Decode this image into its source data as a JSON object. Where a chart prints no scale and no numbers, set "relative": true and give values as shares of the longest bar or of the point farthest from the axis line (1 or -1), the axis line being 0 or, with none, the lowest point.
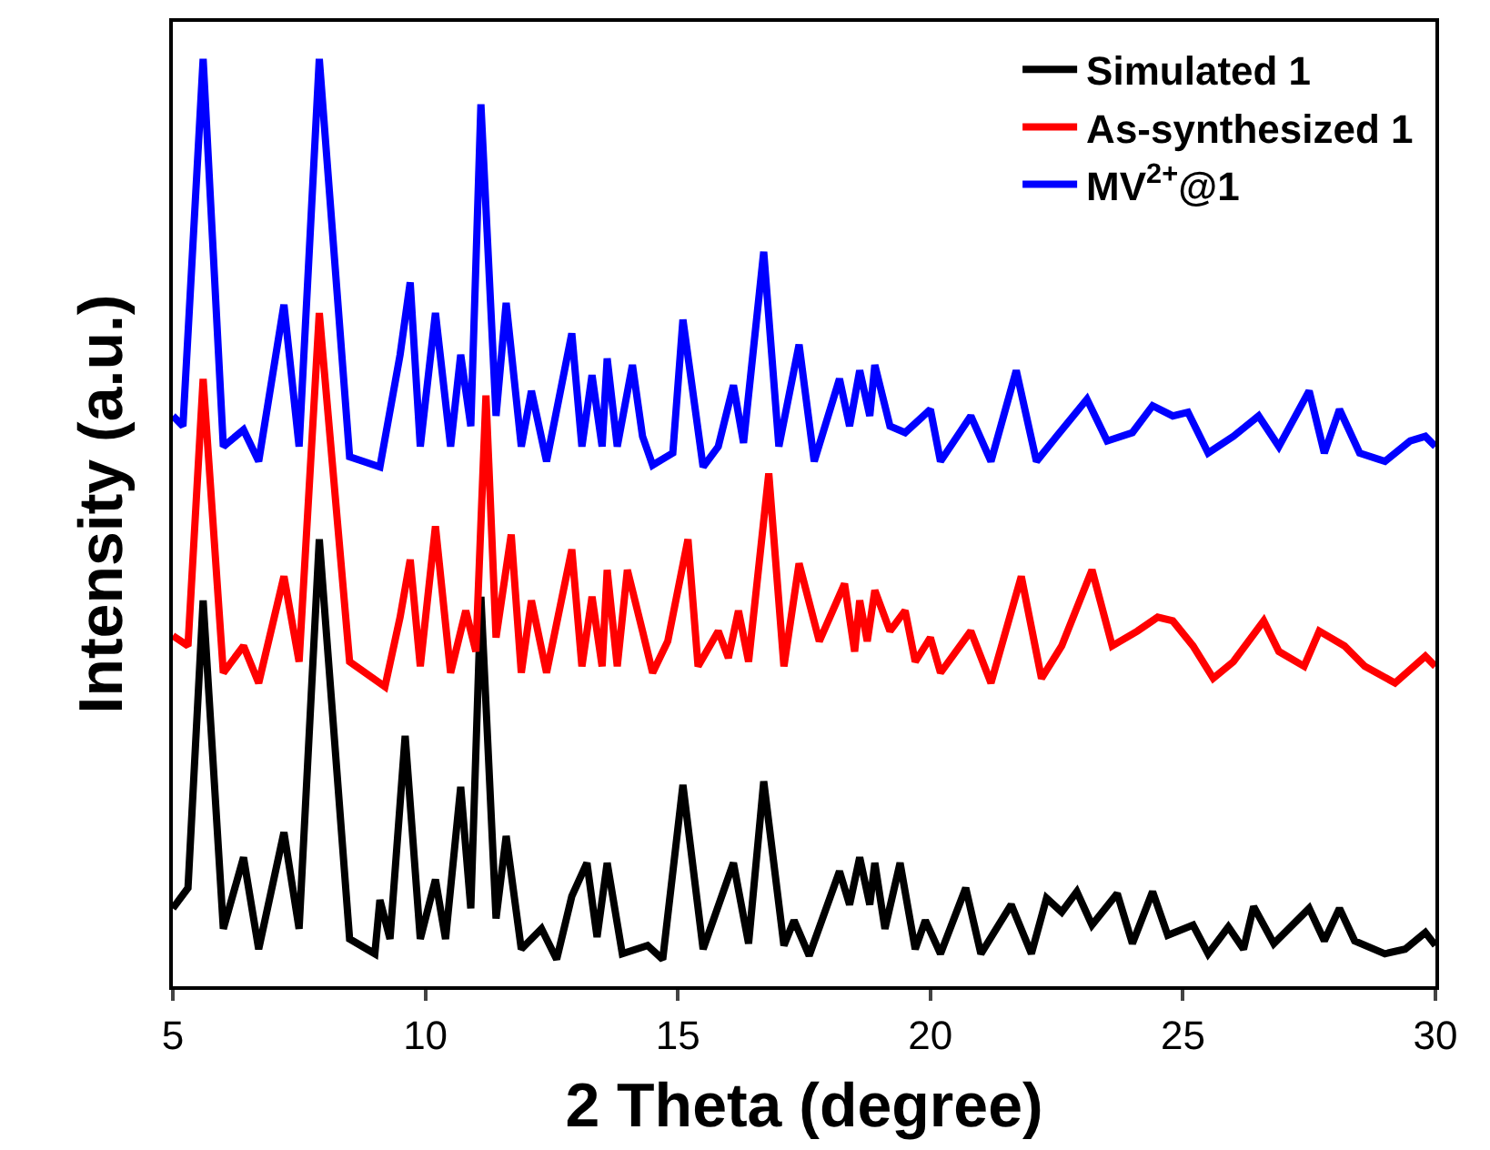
{
  "chart_data": {
    "type": "line",
    "relative": true,
    "xlabel": "2 Theta (degree)",
    "ylabel": "Intensity (a.u.)",
    "xlim": [
      5,
      30
    ],
    "xticks": [
      5,
      10,
      15,
      20,
      25,
      30
    ],
    "legend": "top right",
    "marker": "none",
    "line_style": "solid",
    "tick_labels": "x",
    "series": [
      {
        "name": "Simulated 1",
        "color": "#000000",
        "x": [
          5.0,
          5.3,
          5.6,
          6.0,
          6.4,
          6.7,
          7.2,
          7.5,
          7.9,
          8.5,
          9.0,
          9.1,
          9.3,
          9.6,
          9.9,
          10.2,
          10.4,
          10.7,
          10.9,
          11.1,
          11.4,
          11.6,
          11.9,
          12.3,
          12.6,
          12.9,
          13.2,
          13.4,
          13.6,
          13.9,
          14.4,
          14.7,
          15.1,
          15.5,
          16.1,
          16.4,
          16.7,
          17.1,
          17.3,
          17.6,
          18.2,
          18.4,
          18.6,
          18.8,
          18.9,
          19.1,
          19.4,
          19.7,
          19.9,
          20.2,
          20.7,
          21.0,
          21.6,
          22.0,
          22.3,
          22.6,
          22.9,
          23.2,
          23.7,
          24.0,
          24.4,
          24.7,
          25.2,
          25.5,
          25.9,
          26.2,
          26.4,
          26.8,
          27.5,
          27.8,
          28.1,
          28.4,
          29.0,
          29.4,
          29.8,
          30.0
        ],
        "values": [
          0.084,
          0.106,
          0.416,
          0.062,
          0.139,
          0.04,
          0.166,
          0.062,
          0.482,
          0.051,
          0.035,
          0.093,
          0.051,
          0.27,
          0.051,
          0.115,
          0.051,
          0.215,
          0.084,
          0.42,
          0.073,
          0.162,
          0.04,
          0.062,
          0.029,
          0.097,
          0.133,
          0.053,
          0.133,
          0.035,
          0.044,
          0.029,
          0.217,
          0.04,
          0.133,
          0.046,
          0.221,
          0.044,
          0.071,
          0.033,
          0.124,
          0.088,
          0.139,
          0.088,
          0.133,
          0.062,
          0.133,
          0.04,
          0.071,
          0.035,
          0.106,
          0.035,
          0.088,
          0.035,
          0.095,
          0.08,
          0.102,
          0.066,
          0.1,
          0.046,
          0.102,
          0.055,
          0.066,
          0.035,
          0.064,
          0.04,
          0.086,
          0.046,
          0.084,
          0.049,
          0.084,
          0.049,
          0.035,
          0.04,
          0.058,
          0.044
        ]
      },
      {
        "name": "As-synthesized 1",
        "color": "#ff0000",
        "x": [
          5.0,
          5.3,
          5.6,
          6.0,
          6.4,
          6.7,
          7.2,
          7.5,
          7.9,
          8.5,
          9.2,
          9.5,
          9.7,
          9.9,
          10.2,
          10.5,
          10.8,
          11.0,
          11.2,
          11.4,
          11.7,
          11.9,
          12.1,
          12.4,
          12.9,
          13.1,
          13.3,
          13.5,
          13.6,
          13.8,
          14.0,
          14.3,
          14.5,
          14.8,
          15.2,
          15.4,
          15.8,
          16.0,
          16.2,
          16.4,
          16.8,
          17.1,
          17.4,
          17.8,
          18.3,
          18.5,
          18.6,
          18.75,
          18.9,
          19.2,
          19.5,
          19.7,
          20.0,
          20.2,
          20.8,
          21.2,
          21.8,
          22.2,
          22.6,
          23.2,
          23.6,
          24.1,
          24.5,
          24.8,
          25.2,
          25.6,
          26.0,
          26.6,
          26.9,
          27.4,
          27.7,
          28.2,
          28.6,
          29.2,
          29.8,
          30.0
        ],
        "values": [
          0.378,
          0.367,
          0.655,
          0.338,
          0.367,
          0.327,
          0.442,
          0.35,
          0.726,
          0.35,
          0.323,
          0.398,
          0.46,
          0.345,
          0.496,
          0.338,
          0.405,
          0.361,
          0.637,
          0.376,
          0.487,
          0.338,
          0.416,
          0.338,
          0.471,
          0.345,
          0.42,
          0.345,
          0.449,
          0.345,
          0.449,
          0.383,
          0.338,
          0.372,
          0.482,
          0.345,
          0.383,
          0.354,
          0.405,
          0.35,
          0.553,
          0.345,
          0.456,
          0.372,
          0.434,
          0.361,
          0.416,
          0.372,
          0.427,
          0.383,
          0.405,
          0.35,
          0.376,
          0.338,
          0.383,
          0.327,
          0.442,
          0.332,
          0.367,
          0.449,
          0.367,
          0.383,
          0.398,
          0.394,
          0.367,
          0.332,
          0.35,
          0.394,
          0.361,
          0.345,
          0.383,
          0.367,
          0.345,
          0.327,
          0.356,
          0.345
        ]
      },
      {
        "name": "MV$^{2+}$@1",
        "color": "#0000ff",
        "x": [
          5.0,
          5.2,
          5.6,
          6.0,
          6.4,
          6.7,
          7.2,
          7.5,
          7.9,
          8.5,
          9.1,
          9.5,
          9.7,
          9.9,
          10.2,
          10.5,
          10.7,
          10.9,
          11.1,
          11.4,
          11.6,
          11.9,
          12.1,
          12.4,
          12.9,
          13.1,
          13.3,
          13.5,
          13.6,
          13.8,
          14.1,
          14.3,
          14.5,
          14.9,
          15.1,
          15.5,
          15.8,
          16.1,
          16.3,
          16.7,
          17.0,
          17.4,
          17.7,
          18.2,
          18.4,
          18.6,
          18.8,
          18.9,
          19.2,
          19.5,
          20.0,
          20.2,
          20.8,
          21.2,
          21.7,
          22.1,
          22.5,
          23.1,
          23.5,
          24.0,
          24.4,
          24.8,
          25.1,
          25.5,
          26.0,
          26.5,
          26.9,
          27.5,
          27.8,
          28.1,
          28.5,
          29.0,
          29.5,
          29.8,
          30.0
        ],
        "values": [
          0.615,
          0.604,
          1,
          0.582,
          0.6,
          0.566,
          0.735,
          0.582,
          1,
          0.571,
          0.56,
          0.681,
          0.759,
          0.582,
          0.726,
          0.582,
          0.681,
          0.604,
          0.951,
          0.615,
          0.737,
          0.582,
          0.642,
          0.566,
          0.704,
          0.582,
          0.659,
          0.582,
          0.677,
          0.582,
          0.67,
          0.593,
          0.562,
          0.575,
          0.719,
          0.56,
          0.582,
          0.648,
          0.586,
          0.792,
          0.582,
          0.692,
          0.566,
          0.655,
          0.604,
          0.664,
          0.615,
          0.67,
          0.604,
          0.597,
          0.622,
          0.566,
          0.615,
          0.566,
          0.664,
          0.566,
          0.593,
          0.633,
          0.588,
          0.597,
          0.626,
          0.615,
          0.619,
          0.575,
          0.593,
          0.615,
          0.582,
          0.642,
          0.575,
          0.622,
          0.575,
          0.566,
          0.588,
          0.593,
          0.582
        ]
      }
    ]
  }
}
